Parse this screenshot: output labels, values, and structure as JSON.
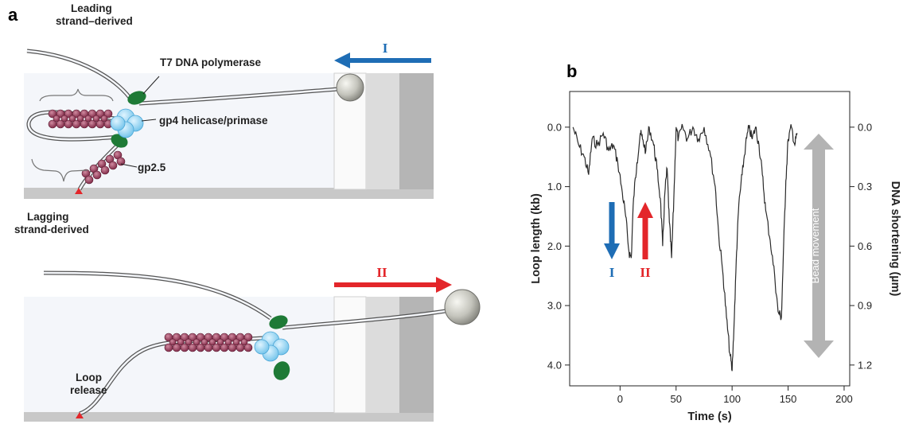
{
  "panel_a": {
    "label": "a",
    "labels": {
      "leading": [
        "Leading",
        "strand–derived"
      ],
      "polymerase": "T7 DNA polymerase",
      "helicase": "gp4 helicase/primase",
      "gp25": "gp2.5",
      "lagging": [
        "Lagging",
        "strand-derived"
      ],
      "loop_release": [
        "Loop",
        "release"
      ]
    },
    "arrow_I": "I",
    "arrow_II": "II"
  },
  "panel_b": {
    "label": "b",
    "arrow_I": "I",
    "arrow_II": "II",
    "bead_movement": "Bead movement"
  },
  "colors": {
    "blue_arrow": "#1e6db5",
    "red_arrow": "#e3262a",
    "gray_arrow": "#b3b3b3",
    "polymerase_green": "#1e7a36",
    "helicase_blue": "#8ed0f0",
    "gp25_maroon": "#8e2c4a"
  },
  "chart_data": {
    "type": "line",
    "xlabel": "Time (s)",
    "ylabel": "Loop length (kb)",
    "y2label": "DNA shortening (µm)",
    "xlim": [
      -45,
      205
    ],
    "ylim": [
      4.35,
      -0.6
    ],
    "xticks": [
      0,
      50,
      100,
      150,
      200
    ],
    "yticks": [
      0.0,
      1.0,
      2.0,
      3.0,
      4.0
    ],
    "y2ticks": [
      "0.0",
      "0.3",
      "0.6",
      "0.9",
      "1.2"
    ],
    "series": [
      {
        "x": [
          -42,
          -37,
          -32,
          -28,
          -25,
          -20,
          -15,
          -10,
          -6,
          -2,
          2,
          5,
          8,
          10,
          12,
          15,
          18,
          20,
          23,
          26,
          30,
          33,
          36,
          38,
          40,
          42,
          44,
          46,
          48,
          50,
          52,
          56,
          60,
          65,
          70,
          75,
          80,
          85,
          88,
          92,
          95,
          98,
          100,
          102,
          104,
          106,
          109,
          112,
          115,
          118,
          121,
          124,
          127,
          130,
          134,
          138,
          141,
          144,
          146,
          148,
          150,
          153,
          156,
          158
        ],
        "y": [
          0.0,
          0.3,
          0.5,
          0.8,
          0.2,
          0.3,
          0.1,
          0.4,
          0.3,
          0.6,
          1.1,
          1.5,
          2.1,
          2.2,
          1.2,
          0.6,
          0.1,
          0.2,
          0.4,
          0.0,
          0.3,
          0.7,
          1.2,
          2.0,
          1.1,
          0.7,
          1.6,
          2.2,
          1.2,
          0.0,
          0.2,
          0.0,
          0.2,
          0.0,
          0.2,
          0.0,
          0.4,
          1.0,
          1.8,
          2.5,
          3.2,
          3.8,
          4.1,
          3.2,
          2.1,
          1.3,
          0.8,
          0.3,
          0.0,
          0.2,
          0.0,
          0.3,
          0.8,
          1.4,
          1.9,
          2.5,
          3.1,
          3.2,
          2.0,
          0.9,
          0.2,
          0.0,
          0.3,
          0.1
        ]
      }
    ]
  }
}
